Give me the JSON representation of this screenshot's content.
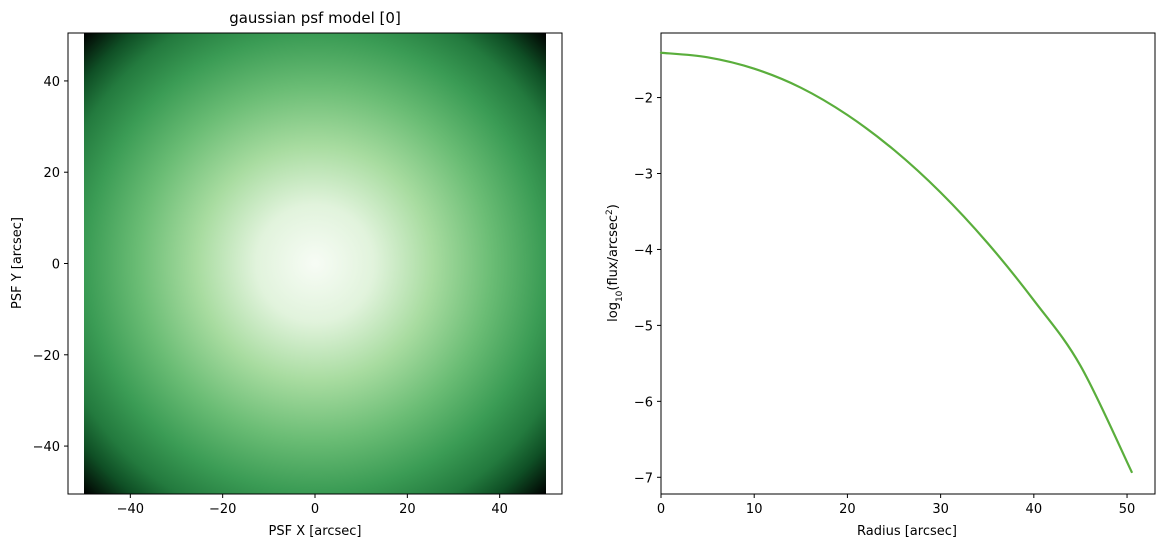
{
  "chart_data": [
    {
      "type": "heatmap",
      "title": "gaussian psf model [0]",
      "xlabel": "PSF X [arcsec]",
      "ylabel": "PSF Y [arcsec]",
      "xlim": [
        -53.5,
        53.5
      ],
      "ylim": [
        -50.5,
        50.5
      ],
      "extent": [
        -50.5,
        50.5,
        -50.5,
        50.5
      ],
      "xticks": [
        -40,
        -20,
        0,
        20,
        40
      ],
      "yticks": [
        -40,
        -20,
        0,
        20,
        40
      ],
      "xtick_labels": [
        "−40",
        "−20",
        "0",
        "20",
        "40"
      ],
      "ytick_labels": [
        "−40",
        "−20",
        "0",
        "20",
        "40"
      ],
      "colormap": "Greens_r",
      "colors": {
        "center": "#f7fcf5",
        "mid": "#41ab5d",
        "edge": "#00441b",
        "corner": "#000000"
      },
      "grid": false
    },
    {
      "type": "line",
      "xlabel": "Radius [arcsec]",
      "ylabel_prefix": "log",
      "ylabel_sub": "10",
      "ylabel_mid": "(flux/arcsec",
      "ylabel_sup": "2",
      "ylabel_suffix": ")",
      "xlim": [
        0,
        53
      ],
      "ylim": [
        -7.22,
        -1.15
      ],
      "xticks": [
        0,
        10,
        20,
        30,
        40,
        50
      ],
      "yticks": [
        -2,
        -3,
        -4,
        -5,
        -6,
        -7
      ],
      "xtick_labels": [
        "0",
        "10",
        "20",
        "30",
        "40",
        "50"
      ],
      "ytick_labels": [
        "−2",
        "−3",
        "−4",
        "−5",
        "−6",
        "−7"
      ],
      "series": [
        {
          "color": "#5aae3c",
          "x": [
            0,
            5,
            10,
            15,
            20,
            25,
            30,
            35,
            40,
            45,
            50.5
          ],
          "y": [
            -1.41,
            -1.47,
            -1.62,
            -1.87,
            -2.23,
            -2.69,
            -3.25,
            -3.91,
            -4.67,
            -5.53,
            -6.93
          ]
        }
      ],
      "grid": false
    }
  ]
}
